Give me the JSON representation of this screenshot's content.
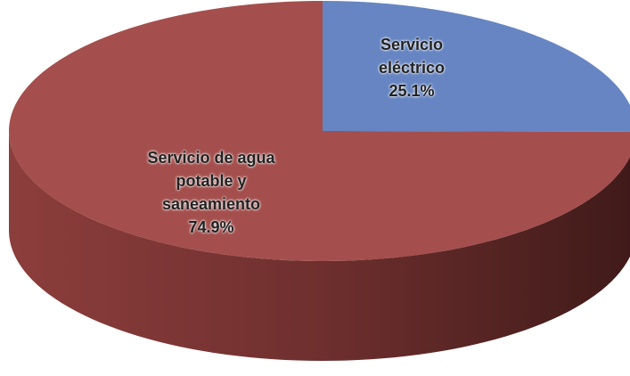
{
  "chart_data": {
    "type": "pie",
    "categories": [
      "Servicio eléctrico",
      "Servicio de agua potable y saneamiento"
    ],
    "values": [
      25.1,
      74.9
    ],
    "value_labels": [
      "25.1%",
      "74.9%"
    ],
    "colors": [
      "#6685c2",
      "#a44f4d"
    ]
  }
}
